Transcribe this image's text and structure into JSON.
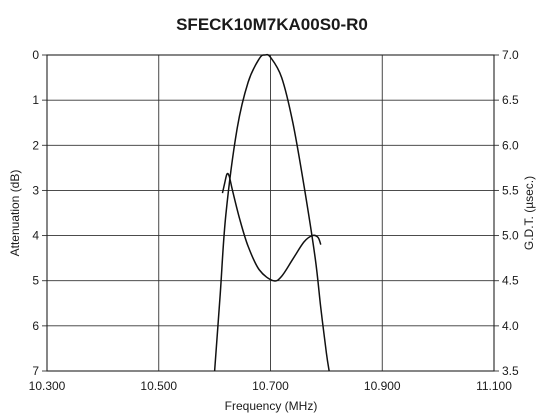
{
  "chart_data": {
    "type": "line",
    "title": "SFECK10M7KA00S0-R0",
    "xlabel": "Frequency (MHz)",
    "ylabel_left": "Attenuation (dB)",
    "ylabel_right": "G.D.T. (µsec.)",
    "x_ticks": [
      "10.300",
      "10.500",
      "10.700",
      "10.900",
      "11.100"
    ],
    "y_left_ticks": [
      "0",
      "1",
      "2",
      "3",
      "4",
      "5",
      "6",
      "7"
    ],
    "y_right_ticks": [
      "7.0",
      "6.5",
      "6.0",
      "5.5",
      "5.0",
      "4.5",
      "4.0",
      "3.5"
    ],
    "xlim": [
      10.3,
      11.1
    ],
    "ylim_left": [
      0,
      7
    ],
    "ylim_left_inverted": true,
    "ylim_right": [
      3.5,
      7.0
    ],
    "grid": true,
    "series": [
      {
        "axis": "left",
        "x": [
          10.6,
          10.61,
          10.62,
          10.64,
          10.66,
          10.68,
          10.69,
          10.7,
          10.72,
          10.74,
          10.76,
          10.78,
          10.79,
          10.8,
          10.805
        ],
        "y": [
          7.0,
          5.3,
          3.55,
          1.65,
          0.6,
          0.08,
          0.0,
          0.05,
          0.5,
          1.5,
          2.9,
          4.5,
          5.6,
          6.6,
          7.0
        ]
      },
      {
        "axis": "right",
        "x": [
          10.614,
          10.618,
          10.622,
          10.626,
          10.632,
          10.645,
          10.66,
          10.68,
          10.705,
          10.72,
          10.74,
          10.76,
          10.775,
          10.785,
          10.79
        ],
        "y": [
          5.47,
          5.58,
          5.68,
          5.66,
          5.5,
          5.18,
          4.88,
          4.62,
          4.5,
          4.55,
          4.74,
          4.93,
          5.0,
          4.98,
          4.9
        ]
      }
    ]
  }
}
